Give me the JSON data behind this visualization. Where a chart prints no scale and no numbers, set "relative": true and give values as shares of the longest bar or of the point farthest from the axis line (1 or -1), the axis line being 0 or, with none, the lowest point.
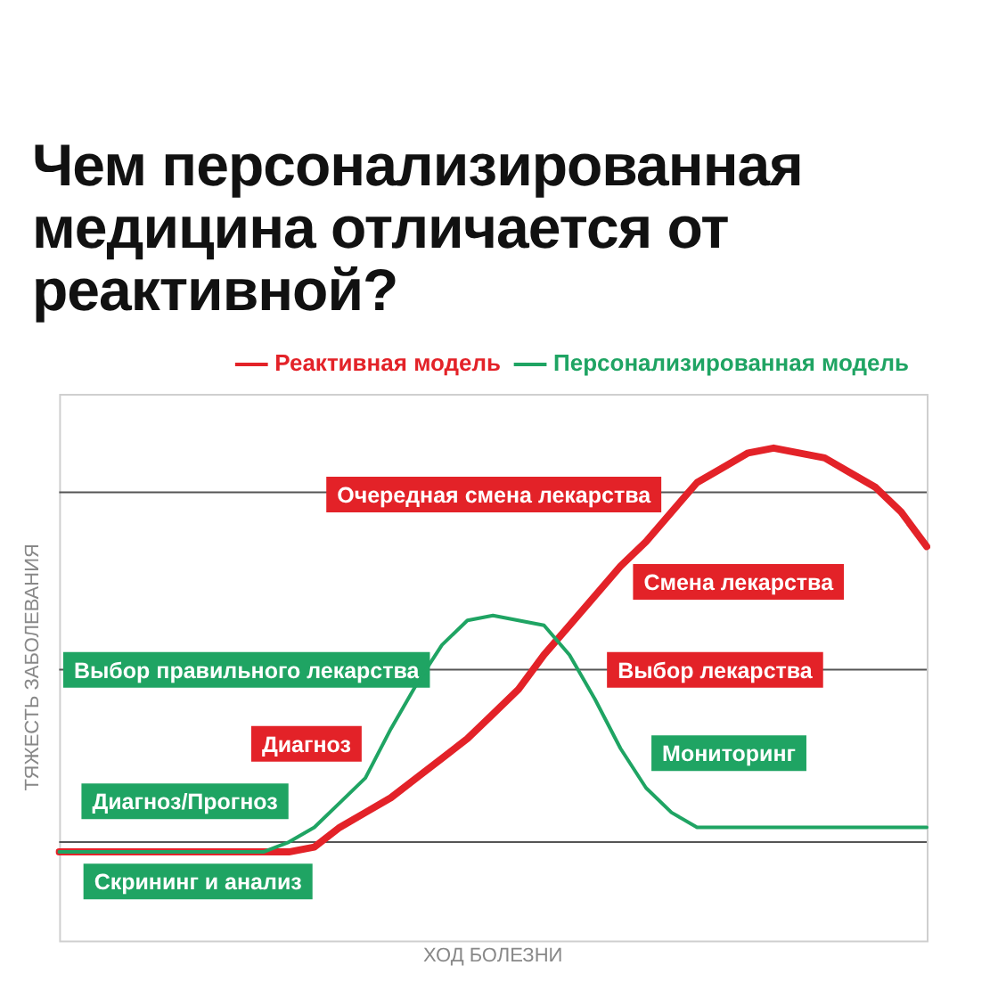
{
  "chart_data": {
    "type": "line",
    "title": "Чем персонализированная медицина отличается от реактивной?",
    "xlabel": "ХОД БОЛЕЗНИ",
    "ylabel": "ТЯЖЕСТЬ ЗАБОЛЕВАНИЯ",
    "relative": true,
    "legend": "top",
    "grid": false,
    "marker": "none",
    "line_style": "solid",
    "categories": [
      null,
      null,
      null,
      null,
      null,
      null,
      null,
      null,
      null,
      null,
      null,
      null,
      null,
      null,
      null,
      null,
      null,
      null,
      null,
      null,
      null,
      null,
      null,
      null,
      null,
      null,
      null,
      null,
      null,
      null,
      null,
      null,
      null,
      null,
      null
    ],
    "series": [
      {
        "name": "Реактивная модель",
        "color": "#e32228",
        "values": [
          0.18,
          0.18,
          0.18,
          0.18,
          0.18,
          0.18,
          0.18,
          0.18,
          0.18,
          0.18,
          0.19,
          0.23,
          0.26,
          0.29,
          0.33,
          0.37,
          0.41,
          0.46,
          0.51,
          0.58,
          0.64,
          0.7,
          0.76,
          0.81,
          0.87,
          0.93,
          0.96,
          0.99,
          1.0,
          0.99,
          0.98,
          0.95,
          0.92,
          0.87,
          0.8
        ]
      },
      {
        "name": "Персонализированная модель",
        "color": "#1fa463",
        "values": [
          0.18,
          0.18,
          0.18,
          0.18,
          0.18,
          0.18,
          0.18,
          0.18,
          0.18,
          0.2,
          0.23,
          0.28,
          0.33,
          0.43,
          0.52,
          0.6,
          0.65,
          0.66,
          0.65,
          0.64,
          0.58,
          0.49,
          0.39,
          0.31,
          0.26,
          0.23,
          0.23,
          0.23,
          0.23,
          0.23,
          0.23,
          0.23,
          0.23,
          0.23,
          0.23
        ]
      }
    ],
    "ref_lines": [
      {
        "axis": "y",
        "value": 0.91,
        "color": "#555555"
      },
      {
        "axis": "y",
        "value": 0.55,
        "color": "#555555"
      },
      {
        "axis": "y",
        "value": 0.2,
        "color": "#555555"
      }
    ],
    "annotations": [
      "Очередная смена лекарства",
      "Смена лекарства",
      "Выбор правильного лекарства",
      "Выбор лекарства",
      "Диагноз",
      "Мониторинг",
      "Диагноз/Прогноз",
      "Скрининг и анализ"
    ]
  }
}
